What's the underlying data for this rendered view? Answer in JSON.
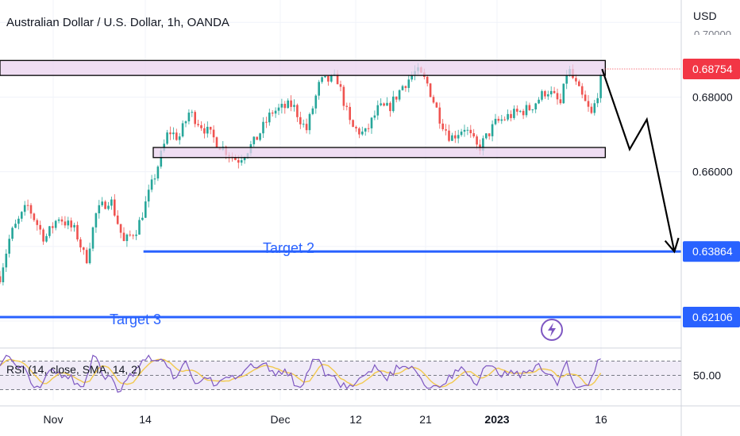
{
  "header": {
    "title": "Australian Dollar / U.S. Dollar, 1h, OANDA",
    "currency": "USD",
    "faded_tick": "0.70000"
  },
  "chart_data": {
    "type": "candlestick",
    "title": "Australian Dollar / U.S. Dollar, 1h, OANDA",
    "y_axis": {
      "unit": "USD",
      "ticks": [
        "0.68000",
        "0.66000"
      ],
      "ylim": [
        0.613,
        0.706
      ]
    },
    "x_axis": {
      "ticks": [
        "Nov",
        "14",
        "Dec",
        "12",
        "21",
        "2023",
        "16"
      ]
    },
    "price_path": [
      [
        0,
        0.632
      ],
      [
        3,
        0.643
      ],
      [
        8,
        0.651
      ],
      [
        13,
        0.642
      ],
      [
        17,
        0.648
      ],
      [
        22,
        0.644
      ],
      [
        25,
        0.636
      ],
      [
        28,
        0.649
      ],
      [
        32,
        0.653
      ],
      [
        36,
        0.641
      ],
      [
        40,
        0.645
      ],
      [
        45,
        0.659
      ],
      [
        49,
        0.671
      ],
      [
        52,
        0.669
      ],
      [
        55,
        0.676
      ],
      [
        59,
        0.672
      ],
      [
        64,
        0.667
      ],
      [
        69,
        0.663
      ],
      [
        74,
        0.668
      ],
      [
        79,
        0.676
      ],
      [
        85,
        0.678
      ],
      [
        89,
        0.671
      ],
      [
        93,
        0.684
      ],
      [
        98,
        0.685
      ],
      [
        102,
        0.672
      ],
      [
        106,
        0.67
      ],
      [
        110,
        0.677
      ],
      [
        113,
        0.677
      ],
      [
        117,
        0.683
      ],
      [
        121,
        0.687
      ],
      [
        124,
        0.684
      ],
      [
        128,
        0.674
      ],
      [
        131,
        0.669
      ],
      [
        135,
        0.672
      ],
      [
        139,
        0.666
      ],
      [
        144,
        0.673
      ],
      [
        148,
        0.675
      ],
      [
        154,
        0.677
      ],
      [
        159,
        0.682
      ],
      [
        163,
        0.678
      ],
      [
        165,
        0.688
      ],
      [
        168,
        0.682
      ],
      [
        172,
        0.675
      ],
      [
        175,
        0.686
      ]
    ],
    "x_domain": [
      0,
      198
    ],
    "annotations": {
      "resistance_zone": {
        "x": [
          0,
          175
        ],
        "y": [
          0.6858,
          0.6898
        ]
      },
      "support_zone": {
        "x": [
          48,
          175
        ],
        "y": [
          0.6638,
          0.6665
        ]
      },
      "projection_arrow": [
        {
          "x": 175,
          "y": 0.6875
        },
        {
          "x": 183,
          "y": 0.666
        },
        {
          "x": 188,
          "y": 0.674
        },
        {
          "x": 196,
          "y": 0.6386
        }
      ],
      "targets": [
        {
          "label": "Target 2",
          "value": 0.63864,
          "x_start": 41,
          "color": "#2962ff"
        },
        {
          "label": "Target 3",
          "value": 0.62106,
          "x_start": 0,
          "color": "#2962ff"
        }
      ]
    },
    "price_labels": [
      {
        "text": "0.68754",
        "value": 0.68754,
        "color": "#f23645"
      },
      {
        "text": "0.63864",
        "value": 0.63864,
        "color": "#2962ff"
      },
      {
        "text": "0.62106",
        "value": 0.62106,
        "color": "#2962ff"
      }
    ],
    "rsi": {
      "title": "RSI (14, close, SMA, 14, 2)",
      "level_label": "50.00",
      "upper_band": 70,
      "lower_band": 30,
      "ylim": [
        15,
        85
      ],
      "rsi_color": "#7e57c2",
      "signal_color": "#f2c94c",
      "band_fill": "#ede7f6"
    }
  },
  "colors": {
    "up_candle": "#26a69a",
    "down_candle": "#ef5350",
    "zone_fill": "#ead1ee",
    "target_line": "#2962ff",
    "current_price": "#f23645",
    "bolt_icon": "#7e57c2"
  }
}
